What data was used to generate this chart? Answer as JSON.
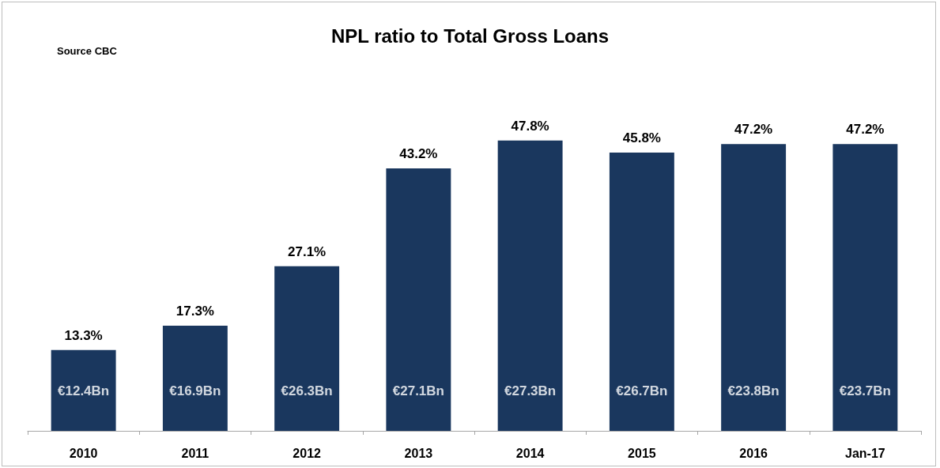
{
  "chart_data": {
    "type": "bar",
    "title": "NPL ratio to Total Gross Loans",
    "categories": [
      "2010",
      "2011",
      "2012",
      "2013",
      "2014",
      "2015",
      "2016",
      "Jan-17"
    ],
    "values": [
      13.3,
      17.3,
      27.1,
      43.2,
      47.8,
      45.8,
      47.2,
      47.2
    ],
    "color": "#1a375e",
    "value_labels": [
      "13.3%",
      "17.3%",
      "27.1%",
      "43.2%",
      "47.8%",
      "45.8%",
      "47.2%",
      "47.2%"
    ],
    "annotations": [
      "Source CBC",
      "€12.4Bn",
      "€16.9Bn",
      "€26.3Bn",
      "€27.1Bn",
      "€27.3Bn",
      "€26.7Bn",
      "€23.8Bn",
      "€23.7Bn"
    ],
    "grid": false,
    "tick_labels": "x"
  }
}
